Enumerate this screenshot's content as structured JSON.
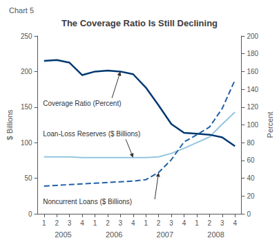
{
  "chart_data": {
    "type": "line",
    "title": "The Coverage Ratio Is Still Declining",
    "subtitle": "Chart 5",
    "y_label": "$ Billions",
    "y2_label": "Percent",
    "categories": [
      "1",
      "2",
      "3",
      "4",
      "1",
      "2",
      "3",
      "4",
      "1",
      "2",
      "3",
      "4",
      "1",
      "2",
      "3",
      "4"
    ],
    "category_groups": [
      "2005",
      "2006",
      "2007",
      "2008"
    ],
    "series": [
      {
        "name": "Coverage Ratio (Percent)",
        "axis": "y2",
        "color": "#003870",
        "line_style": "solid",
        "values": [
          172,
          173,
          170,
          156,
          160,
          161,
          160,
          157,
          142,
          122,
          101,
          91,
          90,
          89,
          86,
          76
        ]
      },
      {
        "name": "Loan-Loss Reserves ($ Billions)",
        "color": "#94C5E0",
        "line_style": "solid",
        "values": [
          80,
          80,
          80,
          79,
          79,
          79,
          79,
          79,
          79,
          80,
          85,
          92,
          100,
          108,
          126,
          143
        ]
      },
      {
        "name": "Noncurrent Loans ($ Billions)",
        "color": "#2060A8",
        "line_style": "dashed",
        "values": [
          39,
          40,
          41,
          42,
          43,
          44,
          45,
          46,
          48,
          58,
          76,
          101,
          111,
          122,
          148,
          188
        ]
      }
    ],
    "ylim": [
      0,
      250
    ],
    "yticks": [
      0,
      50,
      100,
      150,
      200,
      250
    ],
    "y2lim": [
      0,
      200
    ],
    "y2ticks": [
      0,
      20,
      40,
      60,
      80,
      100,
      120,
      140,
      160,
      180,
      200
    ],
    "grid": false,
    "annotations": [
      {
        "text": "Coverage Ratio (Percent)",
        "series": "Coverage Ratio (Percent)",
        "index": 6
      },
      {
        "text": "Loan-Loss Reserves ($ Billions)",
        "series": "Loan-Loss Reserves ($ Billions)",
        "index": 7
      },
      {
        "text": "Noncurrent Loans ($ Billions)",
        "series": "Noncurrent Loans ($ Billions)",
        "index": 9
      }
    ]
  }
}
